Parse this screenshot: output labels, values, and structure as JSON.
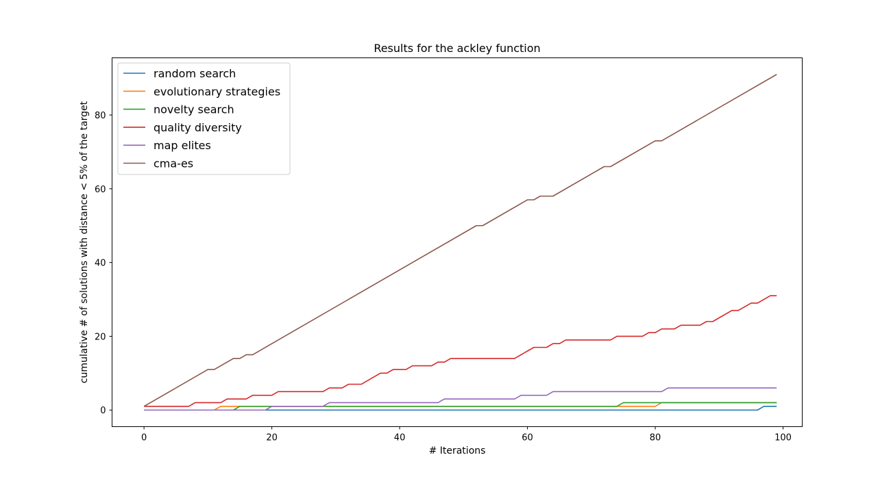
{
  "chart_data": {
    "type": "line",
    "title": "Results for the ackley function",
    "xlabel": "# Iterations",
    "ylabel": "cumulative # of solutions with distance < 5% of the target",
    "xlim": [
      -5,
      103
    ],
    "ylim": [
      -4.5,
      95.5
    ],
    "xticks": [
      0,
      20,
      40,
      60,
      80,
      100
    ],
    "yticks": [
      0,
      20,
      40,
      60,
      80
    ],
    "grid": false,
    "legend_position": "top-left",
    "series": [
      {
        "name": "random search",
        "color": "#1f77b4",
        "points": [
          [
            0,
            0
          ],
          [
            96,
            0
          ],
          [
            97,
            1
          ],
          [
            99,
            1
          ]
        ]
      },
      {
        "name": "evolutionary strategies",
        "color": "#ff7f0e",
        "points": [
          [
            0,
            0
          ],
          [
            11,
            0
          ],
          [
            12,
            1
          ],
          [
            74,
            1
          ],
          [
            75,
            1
          ],
          [
            80,
            1
          ],
          [
            81,
            2
          ],
          [
            99,
            2
          ]
        ]
      },
      {
        "name": "novelty search",
        "color": "#2ca02c",
        "points": [
          [
            0,
            0
          ],
          [
            14,
            0
          ],
          [
            15,
            1
          ],
          [
            74,
            1
          ],
          [
            75,
            2
          ],
          [
            99,
            2
          ]
        ]
      },
      {
        "name": "quality diversity",
        "color": "#d62728",
        "points": [
          [
            0,
            1
          ],
          [
            7,
            1
          ],
          [
            8,
            2
          ],
          [
            12,
            2
          ],
          [
            13,
            3
          ],
          [
            16,
            3
          ],
          [
            17,
            4
          ],
          [
            20,
            4
          ],
          [
            21,
            5
          ],
          [
            28,
            5
          ],
          [
            29,
            6
          ],
          [
            31,
            6
          ],
          [
            32,
            7
          ],
          [
            34,
            7
          ],
          [
            36,
            9
          ],
          [
            37,
            10
          ],
          [
            38,
            10
          ],
          [
            39,
            11
          ],
          [
            41,
            11
          ],
          [
            42,
            12
          ],
          [
            45,
            12
          ],
          [
            46,
            13
          ],
          [
            47,
            13
          ],
          [
            48,
            14
          ],
          [
            58,
            14
          ],
          [
            60,
            16
          ],
          [
            61,
            17
          ],
          [
            63,
            17
          ],
          [
            64,
            18
          ],
          [
            65,
            18
          ],
          [
            66,
            19
          ],
          [
            73,
            19
          ],
          [
            74,
            20
          ],
          [
            78,
            20
          ],
          [
            79,
            21
          ],
          [
            80,
            21
          ],
          [
            81,
            22
          ],
          [
            83,
            22
          ],
          [
            84,
            23
          ],
          [
            87,
            23
          ],
          [
            88,
            24
          ],
          [
            89,
            24
          ],
          [
            92,
            27
          ],
          [
            93,
            27
          ],
          [
            95,
            29
          ],
          [
            96,
            29
          ],
          [
            98,
            31
          ],
          [
            99,
            31
          ]
        ]
      },
      {
        "name": "map elites",
        "color": "#9467bd",
        "points": [
          [
            0,
            0
          ],
          [
            19,
            0
          ],
          [
            20,
            1
          ],
          [
            28,
            1
          ],
          [
            29,
            2
          ],
          [
            46,
            2
          ],
          [
            47,
            3
          ],
          [
            58,
            3
          ],
          [
            59,
            4
          ],
          [
            63,
            4
          ],
          [
            64,
            5
          ],
          [
            81,
            5
          ],
          [
            82,
            6
          ],
          [
            99,
            6
          ]
        ]
      },
      {
        "name": "cma-es",
        "color": "#8c564b",
        "points": [
          [
            0,
            1
          ],
          [
            10,
            11
          ],
          [
            11,
            11
          ],
          [
            14,
            14
          ],
          [
            15,
            14
          ],
          [
            16,
            15
          ],
          [
            17,
            15
          ],
          [
            52,
            50
          ],
          [
            53,
            50
          ],
          [
            60,
            57
          ],
          [
            61,
            57
          ],
          [
            62,
            58
          ],
          [
            64,
            58
          ],
          [
            72,
            66
          ],
          [
            73,
            66
          ],
          [
            80,
            73
          ],
          [
            81,
            73
          ],
          [
            99,
            91
          ]
        ]
      }
    ]
  }
}
